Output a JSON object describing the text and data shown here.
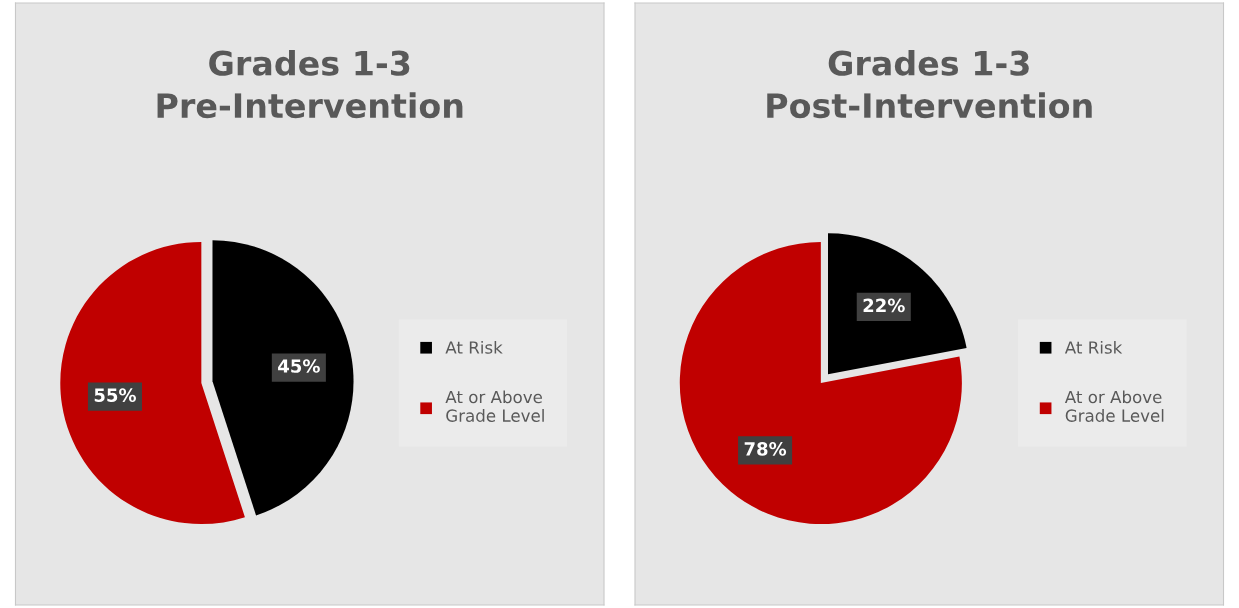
{
  "chart_data": [
    {
      "type": "pie",
      "title": "Grades 1-3\nPre-Intervention",
      "categories": [
        "At Risk",
        "At or Above Grade Level"
      ],
      "values": [
        45,
        55
      ],
      "colors": [
        "#000000",
        "#c00000"
      ],
      "value_labels": [
        "45%",
        "55%"
      ],
      "legend": "right"
    },
    {
      "type": "pie",
      "title": "Grades 1-3\nPost-Intervention",
      "categories": [
        "At Risk",
        "At or Above Grade Level"
      ],
      "values": [
        22,
        78
      ],
      "colors": [
        "#000000",
        "#c00000"
      ],
      "value_labels": [
        "22%",
        "78%"
      ],
      "legend": "right"
    }
  ]
}
